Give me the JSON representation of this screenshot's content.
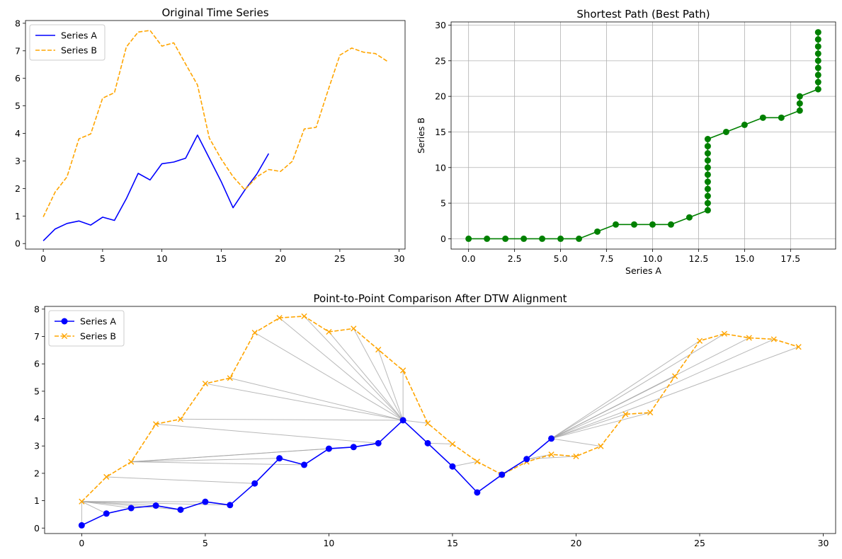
{
  "chart_data": [
    {
      "type": "line",
      "title": "Original Time Series",
      "xlabel": "",
      "ylabel": "",
      "xlim": [
        -1.5,
        30.5
      ],
      "ylim": [
        -0.2,
        8.1
      ],
      "xticks": [
        0,
        5,
        10,
        15,
        20,
        25,
        30
      ],
      "yticks": [
        0,
        1,
        2,
        3,
        4,
        5,
        6,
        7,
        8
      ],
      "grid": false,
      "legend": "upper-left",
      "series": [
        {
          "name": "Series A",
          "color": "#0000ff",
          "style": "solid",
          "x": [
            0,
            1,
            2,
            3,
            4,
            5,
            6,
            7,
            8,
            9,
            10,
            11,
            12,
            13,
            14,
            15,
            16,
            17,
            18,
            19
          ],
          "y": [
            0.1,
            0.53,
            0.73,
            0.82,
            0.67,
            0.96,
            0.84,
            1.63,
            2.55,
            2.31,
            2.9,
            2.96,
            3.1,
            3.94,
            3.1,
            2.25,
            1.3,
            1.95,
            2.52,
            3.27
          ]
        },
        {
          "name": "Series B",
          "color": "#ffa500",
          "style": "dashed",
          "x": [
            0,
            1,
            2,
            3,
            4,
            5,
            6,
            7,
            8,
            9,
            10,
            11,
            12,
            13,
            14,
            15,
            16,
            17,
            18,
            19,
            20,
            21,
            22,
            23,
            24,
            25,
            26,
            27,
            28,
            29
          ],
          "y": [
            0.97,
            1.87,
            2.42,
            3.8,
            3.98,
            5.28,
            5.48,
            7.14,
            7.68,
            7.74,
            7.17,
            7.29,
            6.52,
            5.76,
            3.83,
            3.07,
            2.43,
            1.95,
            2.42,
            2.69,
            2.62,
            2.99,
            4.16,
            4.22,
            5.55,
            6.84,
            7.1,
            6.95,
            6.9,
            6.62
          ]
        }
      ]
    },
    {
      "type": "line",
      "title": "Shortest Path (Best Path)",
      "xlabel": "Series A",
      "ylabel": "Series B",
      "xlim": [
        -0.95,
        19.95
      ],
      "ylim": [
        -1.45,
        30.45
      ],
      "xticks": [
        0.0,
        2.5,
        5.0,
        7.5,
        10.0,
        12.5,
        15.0,
        17.5
      ],
      "xtick_labels": [
        "0.0",
        "2.5",
        "5.0",
        "7.5",
        "10.0",
        "12.5",
        "15.0",
        "17.5"
      ],
      "yticks": [
        0,
        5,
        10,
        15,
        20,
        25,
        30
      ],
      "grid": true,
      "series": [
        {
          "color": "#008000",
          "marker": "circle",
          "style": "solid",
          "x": [
            0,
            1,
            2,
            3,
            4,
            5,
            6,
            7,
            8,
            9,
            10,
            11,
            12,
            13,
            13,
            13,
            13,
            13,
            13,
            13,
            13,
            13,
            13,
            13,
            14,
            15,
            16,
            17,
            18,
            18,
            18,
            19,
            19,
            19,
            19,
            19,
            19,
            19,
            19,
            19
          ],
          "y": [
            0,
            0,
            0,
            0,
            0,
            0,
            0,
            1,
            2,
            2,
            2,
            2,
            3,
            4,
            5,
            6,
            7,
            8,
            9,
            10,
            11,
            12,
            13,
            14,
            15,
            16,
            17,
            17,
            18,
            19,
            20,
            21,
            22,
            23,
            24,
            25,
            26,
            27,
            28,
            29
          ]
        }
      ]
    },
    {
      "type": "line",
      "title": "Point-to-Point Comparison After DTW Alignment",
      "xlabel": "",
      "ylabel": "",
      "xlim": [
        -1.5,
        30.5
      ],
      "ylim": [
        -0.2,
        8.1
      ],
      "xticks": [
        0,
        5,
        10,
        15,
        20,
        25,
        30
      ],
      "yticks": [
        0,
        1,
        2,
        3,
        4,
        5,
        6,
        7,
        8
      ],
      "grid": false,
      "legend": "upper-left",
      "series": [
        {
          "name": "Series A",
          "color": "#0000ff",
          "marker": "circle",
          "style": "solid"
        },
        {
          "name": "Series B",
          "color": "#ffa500",
          "marker": "x",
          "style": "dashed"
        }
      ],
      "alignment_line_color": "#a0a0a0"
    }
  ]
}
